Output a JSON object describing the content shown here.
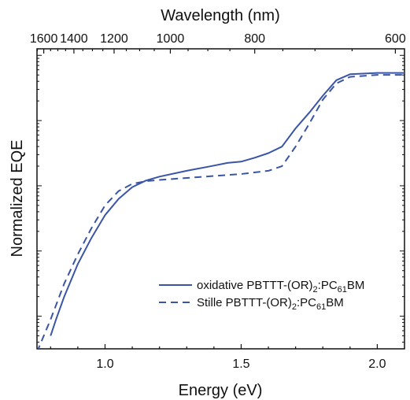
{
  "chart_data": {
    "type": "line",
    "xlabel": "Energy (eV)",
    "ylabel": "Normalized EQE",
    "top_xlabel": "Wavelength (nm)",
    "xlim": [
      0.75,
      2.1
    ],
    "ylog": true,
    "ylim_decades": [
      -4.5,
      0.1
    ],
    "ytick_labels_shown": false,
    "xticks": [
      {
        "value": 1.0,
        "label": "1.0"
      },
      {
        "value": 1.5,
        "label": "1.5"
      },
      {
        "value": 2.0,
        "label": "2.0"
      }
    ],
    "top_ticks": [
      {
        "value": 1600,
        "label": "1600"
      },
      {
        "value": 1400,
        "label": "1400"
      },
      {
        "value": 1200,
        "label": "1200"
      },
      {
        "value": 1000,
        "label": "1000"
      },
      {
        "value": 800,
        "label": "800"
      },
      {
        "value": 600,
        "label": "600"
      }
    ],
    "legend_position": "bottom-right",
    "series": [
      {
        "name_main": "oxidative PBTTT-(OR)",
        "name_sub1": "2",
        "name_mid": ":PC",
        "name_sub2": "61",
        "name_end": "BM",
        "style": "solid",
        "color": "#3a55a5",
        "x": [
          0.8,
          0.82,
          0.85,
          0.9,
          0.95,
          1.0,
          1.05,
          1.1,
          1.15,
          1.2,
          1.3,
          1.4,
          1.45,
          1.5,
          1.55,
          1.6,
          1.65,
          1.7,
          1.75,
          1.8,
          1.85,
          1.9,
          2.0,
          2.1
        ],
        "y_log10": [
          -4.3,
          -4.05,
          -3.7,
          -3.2,
          -2.8,
          -2.45,
          -2.2,
          -2.02,
          -1.92,
          -1.86,
          -1.77,
          -1.69,
          -1.65,
          -1.63,
          -1.57,
          -1.5,
          -1.4,
          -1.12,
          -0.88,
          -0.62,
          -0.38,
          -0.29,
          -0.27,
          -0.27
        ]
      },
      {
        "name_main": "Stille PBTTT-(OR)",
        "name_sub1": "2",
        "name_mid": ":PC",
        "name_sub2": "61",
        "name_end": "BM",
        "style": "dashed",
        "color": "#3a55a5",
        "x": [
          0.75,
          0.8,
          0.85,
          0.9,
          0.95,
          1.0,
          1.05,
          1.1,
          1.15,
          1.2,
          1.3,
          1.4,
          1.5,
          1.6,
          1.65,
          1.7,
          1.75,
          1.8,
          1.85,
          1.9,
          2.0,
          2.1
        ],
        "y_log10": [
          -4.55,
          -4.05,
          -3.5,
          -3.05,
          -2.65,
          -2.3,
          -2.08,
          -1.97,
          -1.93,
          -1.91,
          -1.88,
          -1.85,
          -1.82,
          -1.77,
          -1.7,
          -1.4,
          -1.05,
          -0.68,
          -0.43,
          -0.33,
          -0.3,
          -0.3
        ]
      }
    ]
  }
}
